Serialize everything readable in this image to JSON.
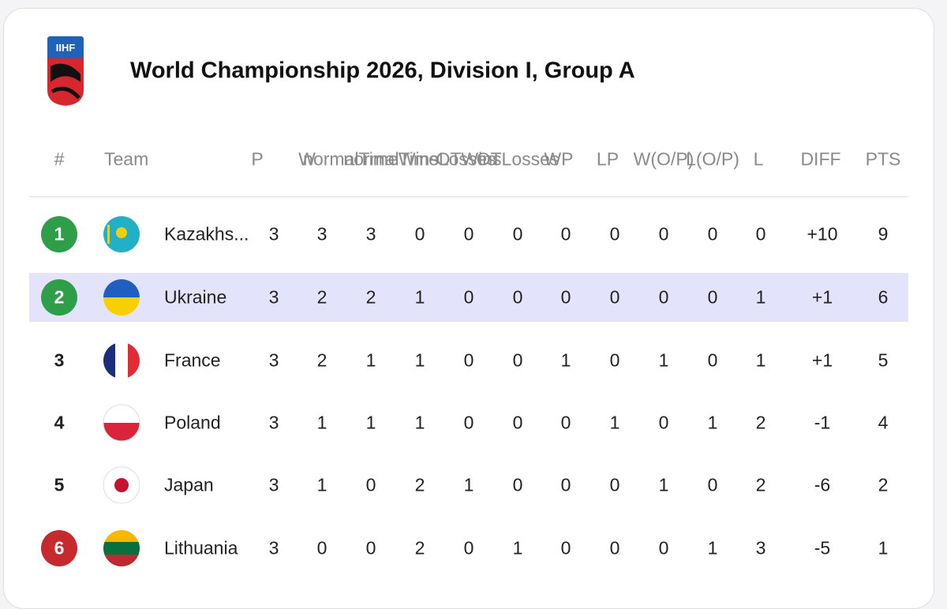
{
  "header": {
    "logo_text": "IIHF",
    "title": "World Championship 2026, Division I, Group A"
  },
  "table": {
    "columns": [
      "#",
      "Team",
      "P",
      "W",
      "normalTimeWins",
      "normalTimeLosses",
      "OTWins",
      "OTLosses",
      "WP",
      "LP",
      "W(O/P)",
      "L(O/P)",
      "L",
      "DIFF",
      "PTS"
    ],
    "rows": [
      {
        "rank": 1,
        "badge_color": "#2e9e49",
        "team": "Kazakhs...",
        "stats": [
          3,
          3,
          3,
          0,
          0,
          0,
          0,
          0,
          0,
          0,
          0,
          "+10",
          9
        ]
      },
      {
        "rank": 2,
        "badge_color": "#2e9e49",
        "team": "Ukraine",
        "stats": [
          3,
          2,
          2,
          1,
          0,
          0,
          0,
          0,
          0,
          0,
          1,
          "+1",
          6
        ],
        "highlight": true
      },
      {
        "rank": 3,
        "team": "France",
        "stats": [
          3,
          2,
          1,
          1,
          0,
          0,
          1,
          0,
          1,
          0,
          1,
          "+1",
          5
        ]
      },
      {
        "rank": 4,
        "team": "Poland",
        "stats": [
          3,
          1,
          1,
          1,
          0,
          0,
          0,
          1,
          0,
          1,
          2,
          -1,
          4
        ]
      },
      {
        "rank": 5,
        "team": "Japan",
        "stats": [
          3,
          1,
          0,
          2,
          1,
          0,
          0,
          0,
          1,
          0,
          2,
          -6,
          2
        ]
      },
      {
        "rank": 6,
        "badge_color": "#c62a2f",
        "team": "Lithuania",
        "stats": [
          3,
          0,
          0,
          2,
          0,
          1,
          0,
          0,
          0,
          1,
          3,
          -5,
          1
        ]
      }
    ]
  }
}
